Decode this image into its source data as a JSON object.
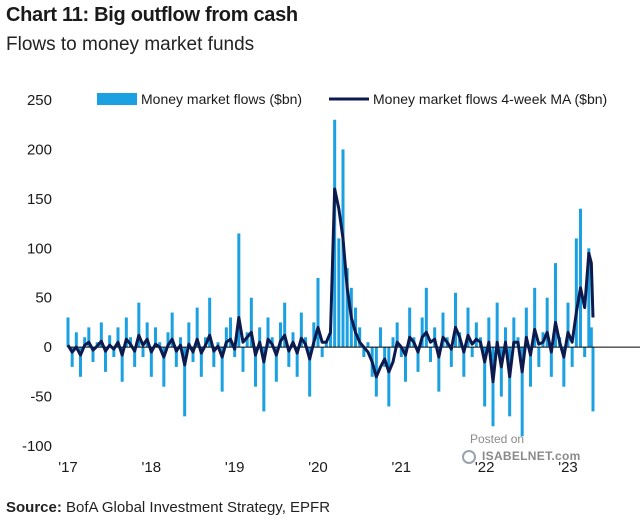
{
  "title": "Chart 11: Big outflow from cash",
  "subtitle": "Flows to money market funds",
  "source_label": "Source:",
  "source_text": " BofA Global Investment Strategy, EPFR",
  "watermark": {
    "line1": "Posted on",
    "line2": "ISABELNET.com"
  },
  "chart_data": {
    "type": "bar",
    "xlabel": "",
    "ylabel": "",
    "ylim": [
      -100,
      250
    ],
    "yticks": [
      -100,
      -50,
      0,
      50,
      100,
      150,
      200,
      250
    ],
    "xlim": [
      2017.0,
      2023.45
    ],
    "xticks": [
      {
        "x": 2017.0,
        "label": "'17"
      },
      {
        "x": 2018.0,
        "label": "'18"
      },
      {
        "x": 2019.0,
        "label": "'19"
      },
      {
        "x": 2020.0,
        "label": "'20"
      },
      {
        "x": 2021.0,
        "label": "'21"
      },
      {
        "x": 2022.0,
        "label": "'22"
      },
      {
        "x": 2023.0,
        "label": "'23"
      }
    ],
    "grid": false,
    "legend_position": "top",
    "colors": {
      "bars": "#1ba1e2",
      "line": "#0c1a4e",
      "axis": "#000000"
    },
    "series": [
      {
        "name": "Money market flows ($bn)",
        "type": "bar",
        "x": [
          2017.0,
          2017.05,
          2017.1,
          2017.15,
          2017.2,
          2017.25,
          2017.3,
          2017.35,
          2017.4,
          2017.45,
          2017.5,
          2017.55,
          2017.6,
          2017.65,
          2017.7,
          2017.75,
          2017.8,
          2017.85,
          2017.9,
          2017.95,
          2018.0,
          2018.05,
          2018.1,
          2018.15,
          2018.2,
          2018.25,
          2018.3,
          2018.35,
          2018.4,
          2018.45,
          2018.5,
          2018.55,
          2018.6,
          2018.65,
          2018.7,
          2018.75,
          2018.8,
          2018.85,
          2018.9,
          2018.95,
          2019.0,
          2019.05,
          2019.1,
          2019.15,
          2019.2,
          2019.25,
          2019.3,
          2019.35,
          2019.4,
          2019.45,
          2019.5,
          2019.55,
          2019.6,
          2019.65,
          2019.7,
          2019.75,
          2019.8,
          2019.85,
          2019.9,
          2019.95,
          2020.0,
          2020.05,
          2020.1,
          2020.15,
          2020.2,
          2020.25,
          2020.3,
          2020.35,
          2020.4,
          2020.45,
          2020.5,
          2020.55,
          2020.6,
          2020.65,
          2020.7,
          2020.75,
          2020.8,
          2020.85,
          2020.9,
          2020.95,
          2021.0,
          2021.05,
          2021.1,
          2021.15,
          2021.2,
          2021.25,
          2021.3,
          2021.35,
          2021.4,
          2021.45,
          2021.5,
          2021.55,
          2021.6,
          2021.65,
          2021.7,
          2021.75,
          2021.8,
          2021.85,
          2021.9,
          2021.95,
          2022.0,
          2022.05,
          2022.1,
          2022.15,
          2022.2,
          2022.25,
          2022.3,
          2022.35,
          2022.4,
          2022.45,
          2022.5,
          2022.55,
          2022.6,
          2022.65,
          2022.7,
          2022.75,
          2022.8,
          2022.85,
          2022.9,
          2022.95,
          2023.0,
          2023.05,
          2023.1,
          2023.15,
          2023.2,
          2023.25,
          2023.28,
          2023.3
        ],
        "values": [
          30,
          -20,
          15,
          -30,
          10,
          20,
          -15,
          5,
          25,
          -25,
          12,
          -10,
          20,
          -35,
          30,
          10,
          -20,
          45,
          -10,
          25,
          -30,
          20,
          5,
          -40,
          15,
          35,
          -20,
          10,
          -70,
          25,
          -15,
          40,
          -30,
          10,
          50,
          -20,
          5,
          -45,
          20,
          30,
          -10,
          115,
          -25,
          15,
          50,
          -40,
          20,
          -65,
          30,
          10,
          -35,
          25,
          45,
          -20,
          15,
          -30,
          35,
          10,
          -50,
          25,
          70,
          -10,
          5,
          20,
          230,
          110,
          200,
          80,
          60,
          40,
          20,
          -10,
          5,
          -30,
          -50,
          20,
          -20,
          -60,
          10,
          25,
          -10,
          -35,
          40,
          10,
          -25,
          30,
          60,
          -15,
          20,
          -45,
          35,
          10,
          -20,
          55,
          15,
          -30,
          40,
          -10,
          25,
          10,
          -60,
          30,
          -80,
          45,
          -50,
          20,
          -70,
          30,
          10,
          -90,
          40,
          -40,
          60,
          -20,
          15,
          50,
          -30,
          85,
          10,
          -40,
          45,
          -20,
          110,
          140,
          -10,
          100,
          20,
          -65
        ]
      },
      {
        "name": "Money market flows 4-week MA ($bn)",
        "type": "line",
        "x": [
          2017.0,
          2017.05,
          2017.1,
          2017.15,
          2017.2,
          2017.25,
          2017.3,
          2017.35,
          2017.4,
          2017.45,
          2017.5,
          2017.55,
          2017.6,
          2017.65,
          2017.7,
          2017.75,
          2017.8,
          2017.85,
          2017.9,
          2017.95,
          2018.0,
          2018.05,
          2018.1,
          2018.15,
          2018.2,
          2018.25,
          2018.3,
          2018.35,
          2018.4,
          2018.45,
          2018.5,
          2018.55,
          2018.6,
          2018.65,
          2018.7,
          2018.75,
          2018.8,
          2018.85,
          2018.9,
          2018.95,
          2019.0,
          2019.05,
          2019.1,
          2019.15,
          2019.2,
          2019.25,
          2019.3,
          2019.35,
          2019.4,
          2019.45,
          2019.5,
          2019.55,
          2019.6,
          2019.65,
          2019.7,
          2019.75,
          2019.8,
          2019.85,
          2019.9,
          2019.95,
          2020.0,
          2020.05,
          2020.1,
          2020.15,
          2020.2,
          2020.25,
          2020.3,
          2020.35,
          2020.4,
          2020.45,
          2020.5,
          2020.55,
          2020.6,
          2020.65,
          2020.7,
          2020.75,
          2020.8,
          2020.85,
          2020.9,
          2020.95,
          2021.0,
          2021.05,
          2021.1,
          2021.15,
          2021.2,
          2021.25,
          2021.3,
          2021.35,
          2021.4,
          2021.45,
          2021.5,
          2021.55,
          2021.6,
          2021.65,
          2021.7,
          2021.75,
          2021.8,
          2021.85,
          2021.9,
          2021.95,
          2022.0,
          2022.05,
          2022.1,
          2022.15,
          2022.2,
          2022.25,
          2022.3,
          2022.35,
          2022.4,
          2022.45,
          2022.5,
          2022.55,
          2022.6,
          2022.65,
          2022.7,
          2022.75,
          2022.8,
          2022.85,
          2022.9,
          2022.95,
          2023.0,
          2023.05,
          2023.1,
          2023.15,
          2023.2,
          2023.25,
          2023.28,
          2023.3
        ],
        "values": [
          2,
          -5,
          0,
          -8,
          2,
          5,
          -3,
          1,
          6,
          -4,
          2,
          -2,
          5,
          -8,
          8,
          3,
          -4,
          12,
          2,
          8,
          -5,
          3,
          0,
          -10,
          2,
          8,
          -4,
          2,
          -18,
          3,
          -5,
          8,
          -6,
          2,
          12,
          -4,
          1,
          -10,
          5,
          8,
          -2,
          30,
          5,
          10,
          15,
          -8,
          5,
          -15,
          8,
          3,
          -8,
          6,
          12,
          -4,
          5,
          -6,
          9,
          3,
          -12,
          5,
          20,
          5,
          5,
          15,
          160,
          140,
          110,
          60,
          30,
          15,
          5,
          0,
          -5,
          -15,
          -30,
          -20,
          -12,
          -25,
          -15,
          5,
          0,
          -8,
          10,
          5,
          -5,
          10,
          15,
          5,
          8,
          -10,
          10,
          5,
          -2,
          20,
          10,
          -5,
          12,
          3,
          8,
          5,
          -15,
          5,
          -35,
          5,
          -20,
          5,
          -30,
          5,
          5,
          -25,
          10,
          -8,
          18,
          3,
          5,
          15,
          -5,
          25,
          5,
          -10,
          15,
          5,
          35,
          60,
          40,
          95,
          85,
          30
        ]
      }
    ]
  }
}
